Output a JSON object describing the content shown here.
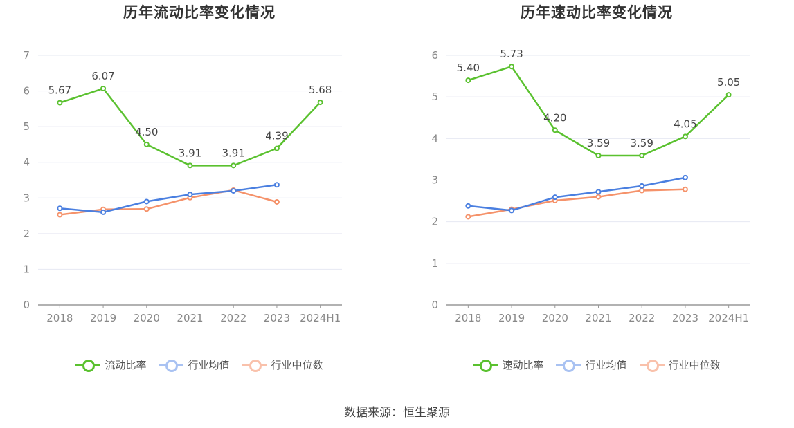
{
  "source_text": "数据来源：恒生聚源",
  "chart_data": [
    {
      "type": "line",
      "title": "历年流动比率变化情况",
      "categories": [
        "2018",
        "2019",
        "2020",
        "2021",
        "2022",
        "2023",
        "2024H1"
      ],
      "ylim": [
        0,
        7
      ],
      "yticks": [
        "0",
        "1",
        "2",
        "3",
        "4",
        "5",
        "6",
        "7"
      ],
      "grid": true,
      "legend_position": "bottom-center",
      "series": [
        {
          "name": "流动比率",
          "color": "#5ac12f",
          "values": [
            5.67,
            6.07,
            4.5,
            3.91,
            3.91,
            4.39,
            5.68
          ],
          "labels": [
            "5.67",
            "6.07",
            "4.50",
            "3.91",
            "3.91",
            "4.39",
            "5.68"
          ]
        },
        {
          "name": "行业均值",
          "color": "#4a7fe0",
          "values": [
            2.71,
            2.6,
            2.9,
            3.1,
            3.2,
            3.37,
            null
          ]
        },
        {
          "name": "行业中位数",
          "color": "#f5926a",
          "values": [
            2.53,
            2.68,
            2.69,
            3.01,
            3.22,
            2.89,
            null
          ]
        }
      ]
    },
    {
      "type": "line",
      "title": "历年速动比率变化情况",
      "categories": [
        "2018",
        "2019",
        "2020",
        "2021",
        "2022",
        "2023",
        "2024H1"
      ],
      "ylim": [
        0,
        6
      ],
      "yticks": [
        "0",
        "1",
        "2",
        "3",
        "4",
        "5",
        "6"
      ],
      "grid": true,
      "legend_position": "bottom-center",
      "series": [
        {
          "name": "速动比率",
          "color": "#5ac12f",
          "values": [
            5.4,
            5.73,
            4.2,
            3.59,
            3.59,
            4.05,
            5.05
          ],
          "labels": [
            "5.40",
            "5.73",
            "4.20",
            "3.59",
            "3.59",
            "4.05",
            "5.05"
          ]
        },
        {
          "name": "行业均值",
          "color": "#4a7fe0",
          "values": [
            2.38,
            2.27,
            2.59,
            2.72,
            2.86,
            3.06,
            null
          ]
        },
        {
          "name": "行业中位数",
          "color": "#f5926a",
          "values": [
            2.12,
            2.3,
            2.51,
            2.6,
            2.75,
            2.78,
            null
          ]
        }
      ]
    }
  ]
}
